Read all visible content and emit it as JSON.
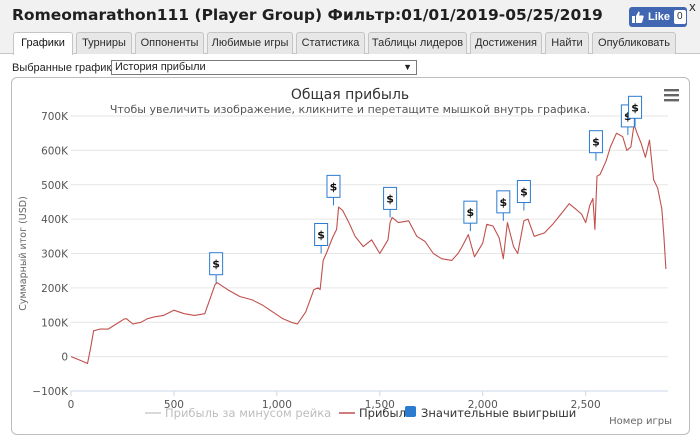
{
  "header": {
    "title": "Romeomarathon111 (Player Group) Фильтр:01/01/2019-05/25/2019",
    "close": "x",
    "like_label": "Like",
    "like_count": "0"
  },
  "tabs": [
    {
      "label": "Графики"
    },
    {
      "label": "Турниры"
    },
    {
      "label": "Оппоненты"
    },
    {
      "label": "Любимые игры"
    },
    {
      "label": "Статистика"
    },
    {
      "label": "Таблицы лидеров"
    },
    {
      "label": "Достижения"
    },
    {
      "label": "Найти"
    },
    {
      "label": "Опубликовать"
    }
  ],
  "selector": {
    "label": "Выбранные графики:",
    "value": "История прибыли"
  },
  "chart_data": {
    "type": "line",
    "title": "Общая прибыль",
    "subtitle": "Чтобы увеличить изображение, кликните и перетащите мышкой внутрь графика.",
    "xlabel": "Номер игры",
    "ylabel": "Суммарный итог (USD)",
    "xlim": [
      0,
      2900
    ],
    "ylim": [
      -100000,
      700000
    ],
    "x_ticks": [
      "0",
      "500",
      "1,000",
      "1,500",
      "2,000",
      "2,500"
    ],
    "y_ticks": [
      "700K",
      "600K",
      "500K",
      "400K",
      "300K",
      "200K",
      "100K",
      "0",
      "−100K"
    ],
    "grid": true,
    "legend_position": "bottom",
    "menu_icon": "hamburger-icon",
    "series": [
      {
        "name": "Прибыль за минусом рейка",
        "color": "#cccccc",
        "x": [],
        "y": []
      },
      {
        "name": "Прибыль",
        "color": "#c0504d",
        "x": [
          0,
          20,
          50,
          80,
          95,
          110,
          140,
          180,
          220,
          260,
          270,
          300,
          340,
          370,
          400,
          450,
          500,
          550,
          600,
          650,
          700,
          710,
          760,
          820,
          880,
          930,
          980,
          1030,
          1070,
          1100,
          1140,
          1180,
          1200,
          1210,
          1225,
          1240,
          1270,
          1290,
          1300,
          1320,
          1350,
          1380,
          1420,
          1460,
          1500,
          1540,
          1550,
          1560,
          1590,
          1640,
          1680,
          1720,
          1760,
          1800,
          1850,
          1880,
          1900,
          1930,
          1960,
          2000,
          2020,
          2050,
          2080,
          2100,
          2120,
          2150,
          2170,
          2200,
          2220,
          2250,
          2300,
          2340,
          2380,
          2420,
          2450,
          2480,
          2500,
          2520,
          2535,
          2545,
          2555,
          2570,
          2600,
          2620,
          2650,
          2680,
          2700,
          2720,
          2735,
          2750,
          2770,
          2790,
          2810,
          2830,
          2850,
          2870,
          2880,
          2890
        ],
        "y": [
          0,
          -5000,
          -12000,
          -20000,
          25000,
          75000,
          80000,
          80000,
          95000,
          110000,
          110000,
          95000,
          100000,
          110000,
          115000,
          120000,
          135000,
          125000,
          120000,
          125000,
          210000,
          215000,
          195000,
          175000,
          165000,
          150000,
          130000,
          110000,
          100000,
          95000,
          130000,
          195000,
          200000,
          195000,
          280000,
          300000,
          345000,
          370000,
          435000,
          425000,
          390000,
          350000,
          320000,
          340000,
          300000,
          340000,
          390000,
          405000,
          390000,
          395000,
          350000,
          335000,
          300000,
          285000,
          280000,
          300000,
          320000,
          355000,
          290000,
          330000,
          385000,
          380000,
          345000,
          285000,
          390000,
          320000,
          300000,
          395000,
          400000,
          350000,
          360000,
          385000,
          415000,
          445000,
          430000,
          415000,
          390000,
          440000,
          460000,
          370000,
          525000,
          530000,
          570000,
          610000,
          650000,
          640000,
          600000,
          610000,
          675000,
          650000,
          620000,
          580000,
          630000,
          515000,
          490000,
          430000,
          350000,
          255000
        ]
      }
    ],
    "markers": {
      "name": "Значительные выигрыши",
      "color": "#2b7bd1",
      "symbol": "$",
      "x": [
        705,
        1215,
        1275,
        1550,
        1940,
        2100,
        2200,
        2550,
        2705,
        2740
      ],
      "y": [
        215000,
        300000,
        440000,
        405000,
        365000,
        395000,
        425000,
        570000,
        645000,
        670000
      ]
    }
  }
}
